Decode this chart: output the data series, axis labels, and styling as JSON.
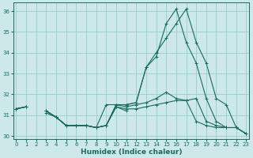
{
  "xlabel": "Humidex (Indice chaleur)",
  "bg_color": "#cce8e8",
  "line_color": "#1a6b5e",
  "grid_color": "#99cccc",
  "x": [
    0,
    1,
    2,
    3,
    4,
    5,
    6,
    7,
    8,
    9,
    10,
    11,
    12,
    13,
    14,
    15,
    16,
    17,
    18,
    19,
    20,
    21,
    22,
    23
  ],
  "series": [
    [
      31.3,
      31.4,
      null,
      31.2,
      30.9,
      30.5,
      30.5,
      30.5,
      30.4,
      30.5,
      31.4,
      31.2,
      null,
      null,
      null,
      null,
      null,
      null,
      null,
      null,
      null,
      null,
      null,
      null
    ],
    [
      31.3,
      31.4,
      null,
      31.1,
      30.9,
      30.5,
      30.5,
      30.5,
      30.4,
      30.5,
      31.4,
      31.3,
      31.3,
      31.4,
      31.5,
      31.6,
      31.7,
      31.7,
      30.7,
      30.5,
      30.4,
      30.4,
      null,
      null
    ],
    [
      31.3,
      31.4,
      null,
      31.2,
      30.9,
      30.5,
      30.5,
      30.5,
      30.4,
      30.5,
      31.5,
      31.4,
      31.5,
      31.6,
      31.8,
      32.1,
      31.8,
      31.7,
      31.8,
      30.7,
      30.5,
      30.4,
      30.4,
      30.1
    ],
    [
      31.3,
      31.4,
      null,
      31.2,
      30.9,
      30.5,
      30.5,
      30.5,
      30.4,
      30.5,
      31.5,
      31.5,
      31.6,
      33.3,
      34.0,
      34.7,
      35.4,
      36.1,
      34.5,
      33.5,
      31.8,
      31.5,
      30.4,
      30.1
    ],
    [
      31.3,
      31.4,
      null,
      31.2,
      30.9,
      30.5,
      30.5,
      30.5,
      30.4,
      31.5,
      31.5,
      31.5,
      31.6,
      33.3,
      33.8,
      35.4,
      36.1,
      34.5,
      33.5,
      31.8,
      30.7,
      30.4,
      30.4,
      30.1
    ]
  ],
  "ylim": [
    29.85,
    36.4
  ],
  "xlim": [
    -0.3,
    23.3
  ],
  "yticks": [
    30,
    31,
    32,
    33,
    34,
    35,
    36
  ],
  "xticks": [
    0,
    1,
    2,
    3,
    4,
    5,
    6,
    7,
    8,
    9,
    10,
    11,
    12,
    13,
    14,
    15,
    16,
    17,
    18,
    19,
    20,
    21,
    22,
    23
  ]
}
